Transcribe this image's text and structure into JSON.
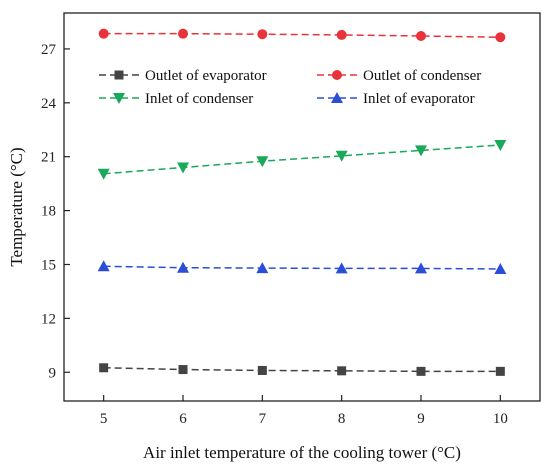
{
  "chart_data": {
    "type": "line",
    "title": "",
    "xlabel": "Air inlet temperature of the cooling tower (°C)",
    "ylabel": "Temperature (°C)",
    "x": [
      5,
      6,
      7,
      8,
      9,
      10
    ],
    "xticks": [
      5,
      6,
      7,
      8,
      9,
      10
    ],
    "yticks": [
      9,
      12,
      15,
      18,
      21,
      24,
      27
    ],
    "xlim": [
      4.5,
      10.5
    ],
    "ylim": [
      7.4,
      29.0
    ],
    "grid": false,
    "legend_placement": "upper-center",
    "series": [
      {
        "name": "Outlet of evaporator",
        "values": [
          9.25,
          9.15,
          9.1,
          9.08,
          9.05,
          9.05
        ],
        "color": "#444444",
        "marker": "square"
      },
      {
        "name": "Outlet of condenser",
        "values": [
          27.85,
          27.85,
          27.82,
          27.78,
          27.72,
          27.65
        ],
        "color": "#e8333a",
        "marker": "circle"
      },
      {
        "name": "Inlet of condenser",
        "values": [
          20.05,
          20.4,
          20.75,
          21.05,
          21.35,
          21.65
        ],
        "color": "#1aa85a",
        "marker": "triangle-down"
      },
      {
        "name": "Inlet of evaporator",
        "values": [
          14.9,
          14.82,
          14.8,
          14.78,
          14.78,
          14.75
        ],
        "color": "#2a4fd6",
        "marker": "triangle-up"
      }
    ]
  }
}
